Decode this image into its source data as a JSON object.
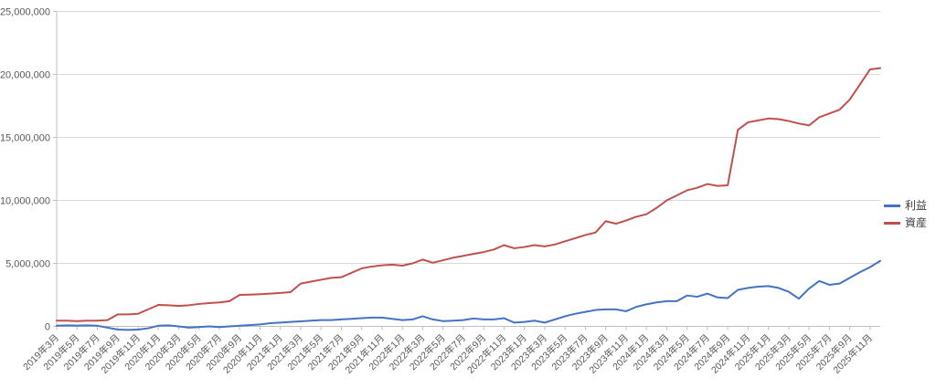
{
  "chart_data": {
    "type": "line",
    "title": "",
    "xlabel": "",
    "ylabel": "",
    "ylim": [
      0,
      25000000
    ],
    "y_tick_values": [
      0,
      5000000,
      10000000,
      15000000,
      20000000,
      25000000
    ],
    "y_tick_labels": [
      "0",
      "5,000,000",
      "10,000,000",
      "15,000,000",
      "20,000,000",
      "25,000,000"
    ],
    "grid": true,
    "legend_position": "right",
    "x_labels_every_n_points": 2,
    "x_label_rotation_deg": -45,
    "months": [
      "2019年3月",
      "2019年4月",
      "2019年5月",
      "2019年6月",
      "2019年7月",
      "2019年8月",
      "2019年9月",
      "2019年10月",
      "2019年11月",
      "2019年12月",
      "2020年1月",
      "2020年2月",
      "2020年3月",
      "2020年4月",
      "2020年5月",
      "2020年6月",
      "2020年7月",
      "2020年8月",
      "2020年9月",
      "2020年10月",
      "2020年11月",
      "2020年12月",
      "2021年1月",
      "2021年2月",
      "2021年3月",
      "2021年4月",
      "2021年5月",
      "2021年6月",
      "2021年7月",
      "2021年8月",
      "2021年9月",
      "2021年10月",
      "2021年11月",
      "2021年12月",
      "2022年1月",
      "2022年2月",
      "2022年3月",
      "2022年4月",
      "2022年5月",
      "2022年6月",
      "2022年7月",
      "2022年8月",
      "2022年9月",
      "2022年10月",
      "2022年11月",
      "2022年12月",
      "2023年1月",
      "2023年2月",
      "2023年3月",
      "2023年4月",
      "2023年5月",
      "2023年6月",
      "2023年7月",
      "2023年8月",
      "2023年9月",
      "2023年10月",
      "2023年11月",
      "2023年12月",
      "2024年1月",
      "2024年2月",
      "2024年3月",
      "2024年4月",
      "2024年5月",
      "2024年6月",
      "2024年7月",
      "2024年8月",
      "2024年9月",
      "2024年10月",
      "2024年11月",
      "2024年12月",
      "2025年1月",
      "2025年2月",
      "2025年3月",
      "2025年4月",
      "2025年5月",
      "2025年6月",
      "2025年7月",
      "2025年8月",
      "2025年9月",
      "2025年10月",
      "2025年11月",
      "2025年12月"
    ],
    "series": [
      {
        "name": "利益",
        "key": "profit",
        "color": "#4472C4",
        "values": [
          50000,
          80000,
          60000,
          80000,
          50000,
          -100000,
          -250000,
          -280000,
          -250000,
          -150000,
          50000,
          80000,
          0,
          -100000,
          -50000,
          0,
          -50000,
          0,
          50000,
          100000,
          150000,
          250000,
          300000,
          350000,
          400000,
          450000,
          500000,
          500000,
          550000,
          600000,
          650000,
          700000,
          700000,
          600000,
          500000,
          550000,
          800000,
          550000,
          420000,
          450000,
          500000,
          630000,
          550000,
          550000,
          650000,
          300000,
          350000,
          450000,
          300000,
          550000,
          800000,
          1000000,
          1150000,
          1300000,
          1350000,
          1350000,
          1200000,
          1550000,
          1750000,
          1900000,
          2000000,
          2000000,
          2450000,
          2350000,
          2600000,
          2300000,
          2250000,
          2900000,
          3050000,
          3150000,
          3200000,
          3050000,
          2750000,
          2200000,
          3000000,
          3600000,
          3300000,
          3400000,
          3850000,
          4300000,
          4700000,
          5200000
        ]
      },
      {
        "name": "資産",
        "key": "assets",
        "color": "#C0504D",
        "values": [
          450000,
          450000,
          420000,
          450000,
          450000,
          500000,
          950000,
          950000,
          1000000,
          1350000,
          1700000,
          1680000,
          1620000,
          1680000,
          1780000,
          1850000,
          1900000,
          2000000,
          2500000,
          2520000,
          2550000,
          2600000,
          2650000,
          2720000,
          3400000,
          3550000,
          3700000,
          3850000,
          3900000,
          4250000,
          4600000,
          4750000,
          4850000,
          4900000,
          4820000,
          5000000,
          5300000,
          5050000,
          5250000,
          5450000,
          5600000,
          5750000,
          5900000,
          6100000,
          6450000,
          6200000,
          6300000,
          6450000,
          6350000,
          6500000,
          6750000,
          7000000,
          7250000,
          7450000,
          8350000,
          8150000,
          8400000,
          8700000,
          8900000,
          9400000,
          10000000,
          10400000,
          10800000,
          11000000,
          11300000,
          11150000,
          11200000,
          15600000,
          16200000,
          16350000,
          16500000,
          16450000,
          16300000,
          16100000,
          15950000,
          16600000,
          16900000,
          17200000,
          18000000,
          19200000,
          20400000,
          20500000
        ]
      }
    ],
    "axis_color": "#BFBFBF",
    "gridline_color": "#D9D9D9",
    "tick_label_color": "#595959"
  }
}
